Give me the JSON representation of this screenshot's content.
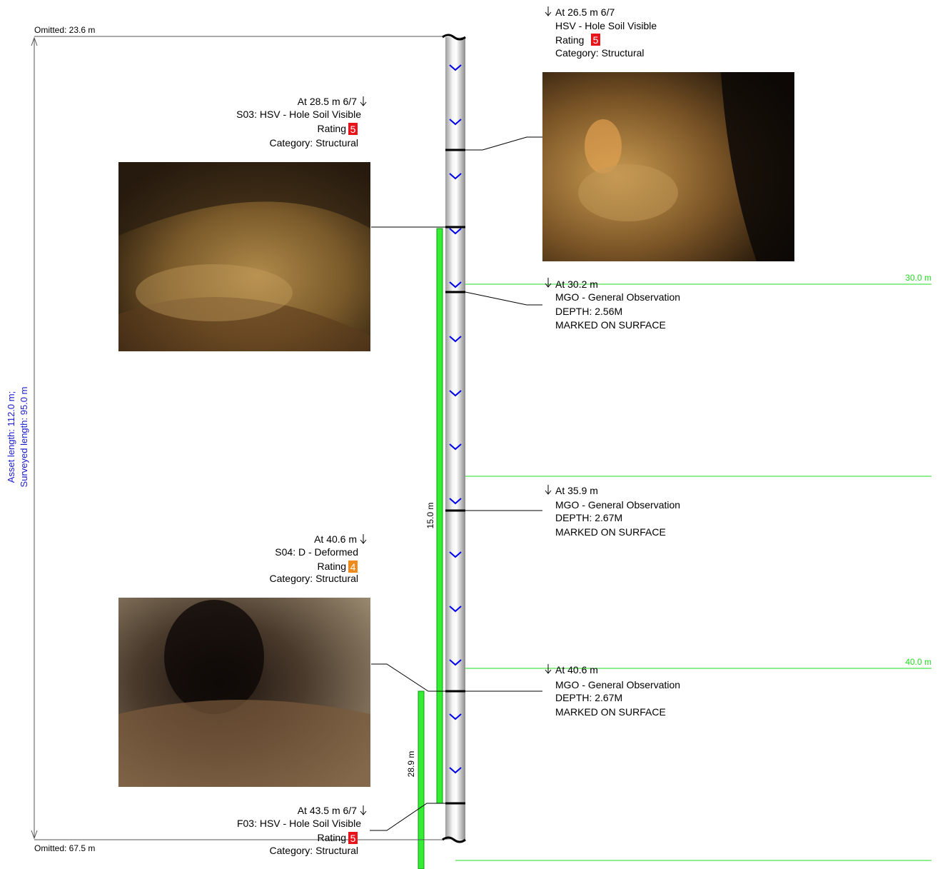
{
  "header": {
    "omitted_top": "Omitted: 23.6 m",
    "omitted_bottom": "Omitted: 67.5 m",
    "asset_length": "Asset length: 112.0 m;",
    "surveyed_length": "Surveyed length: 95.0 m"
  },
  "distance_markers": [
    {
      "label": "30.0 m"
    },
    {
      "label": "40.0 m"
    }
  ],
  "span_labels": {
    "inner": "15.0 m",
    "outer": "28.9 m"
  },
  "observations_left": [
    {
      "at": "At 28.5 m 6/7",
      "code": "S03: HSV - Hole Soil Visible",
      "rating_label": "Rating",
      "rating": "5",
      "rating_color": "#e8141c",
      "category": "Category: Structural"
    },
    {
      "at": "At 40.6 m",
      "code": "S04: D - Deformed",
      "rating_label": "Rating",
      "rating": "4",
      "rating_color": "#f08a1c",
      "category": "Category: Structural"
    },
    {
      "at": "At 43.5 m 6/7",
      "code": "F03: HSV - Hole Soil Visible",
      "rating_label": "Rating",
      "rating": "5",
      "rating_color": "#e8141c",
      "category": "Category: Structural"
    }
  ],
  "observations_right": [
    {
      "at": "At 26.5 m 6/7",
      "code": "HSV - Hole Soil Visible",
      "rating_label": "Rating",
      "rating": "5",
      "rating_color": "#e8141c",
      "category": "Category: Structural"
    },
    {
      "at": "At 30.2 m",
      "code": "MGO - General Observation",
      "depth": "DEPTH: 2.56M",
      "note": "MARKED ON SURFACE"
    },
    {
      "at": "At 35.9 m",
      "code": "MGO - General Observation",
      "depth": "DEPTH: 2.67M",
      "note": "MARKED ON SURFACE"
    },
    {
      "at": "At 40.6 m",
      "code": "MGO - General Observation",
      "depth": "DEPTH: 2.67M",
      "note": "MARKED ON SURFACE"
    }
  ]
}
